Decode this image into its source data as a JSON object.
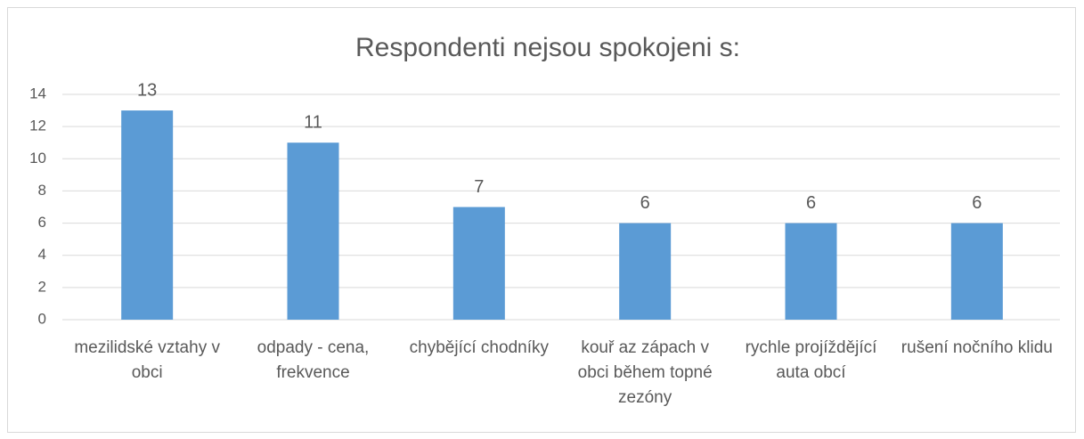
{
  "chart_data": {
    "type": "bar",
    "title": "Respondenti nejsou spokojeni s:",
    "categories": [
      "mezilidské vztahy v obci",
      "odpady - cena, frekvence",
      "chybějící chodníky",
      "kouř az zápach v obci během topné zezóny",
      "rychle projíždějící auta obcí",
      "rušení nočního klidu"
    ],
    "values": [
      13,
      11,
      7,
      6,
      6,
      6
    ],
    "color": "#5b9bd5",
    "ylim": [
      0,
      14
    ],
    "yticks": [
      0,
      2,
      4,
      6,
      8,
      10,
      12,
      14
    ],
    "grid": true,
    "data_labels": true
  }
}
